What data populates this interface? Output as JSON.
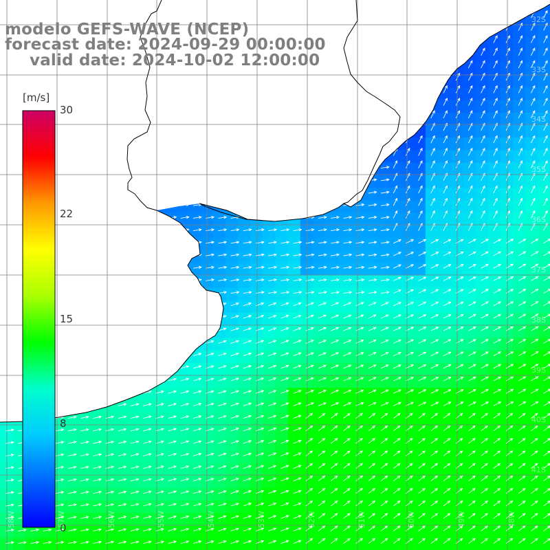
{
  "titles": {
    "line1": "modelo GEFS-WAVE (NCEP)",
    "line2": "forecast date: 2024-09-29 00:00:00",
    "line3": "valid date: 2024-10-02 12:00:00"
  },
  "colorbar": {
    "unit": "[m/s]",
    "ticks": [
      "30",
      "22",
      "15",
      "8",
      "0"
    ],
    "min": 0,
    "max": 30,
    "colors": [
      "#0000ff",
      "#0066ff",
      "#00ccff",
      "#00ffcc",
      "#00ff00",
      "#aaff00",
      "#ffff00",
      "#ff9900",
      "#ff0000",
      "#cc0066"
    ]
  },
  "map": {
    "land_color": "#ffffff",
    "grid_color": "#7f7f7f",
    "coast_color": "#000000",
    "arrow_color": "#ffffff",
    "lat_labels": [
      "32S",
      "33S",
      "34S",
      "35S",
      "36S",
      "37S",
      "38S",
      "39S",
      "40S",
      "41S"
    ],
    "lon_labels": [
      "58W",
      "57W",
      "56W",
      "55W",
      "54W",
      "53W",
      "52W",
      "51W",
      "50W",
      "49W",
      "48W"
    ]
  }
}
